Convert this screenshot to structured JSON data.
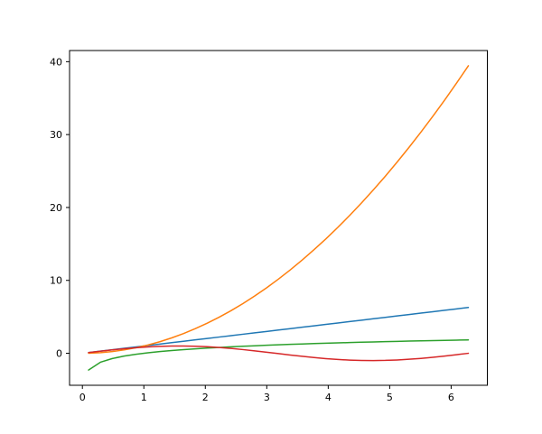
{
  "figure": {
    "background": "#ffffff",
    "title": ""
  },
  "chart_data": {
    "type": "line",
    "title": "",
    "xlabel": "",
    "ylabel": "",
    "grid": false,
    "legend": "none",
    "axis_color": "#000000",
    "xlim": [
      -0.209,
      6.589
    ],
    "ylim": [
      -4.39,
      41.53
    ],
    "xticks": [
      0,
      1,
      2,
      3,
      4,
      5,
      6
    ],
    "yticks": [
      0,
      10,
      20,
      30,
      40
    ],
    "x": [
      0.1,
      0.293,
      0.486,
      0.679,
      0.873,
      1.066,
      1.259,
      1.452,
      1.645,
      1.838,
      2.031,
      2.224,
      2.418,
      2.611,
      2.804,
      2.997,
      3.19,
      3.383,
      3.576,
      3.769,
      3.963,
      4.156,
      4.349,
      4.542,
      4.735,
      4.928,
      5.121,
      5.314,
      5.508,
      5.701,
      5.894,
      6.087,
      6.28
    ],
    "series": [
      {
        "name": "blue-line",
        "color": "#1f77b4",
        "values": [
          0.1,
          0.293,
          0.486,
          0.679,
          0.873,
          1.066,
          1.259,
          1.452,
          1.645,
          1.838,
          2.031,
          2.224,
          2.418,
          2.611,
          2.804,
          2.997,
          3.19,
          3.383,
          3.576,
          3.769,
          3.963,
          4.156,
          4.349,
          4.542,
          4.735,
          4.928,
          5.121,
          5.314,
          5.508,
          5.701,
          5.894,
          6.087,
          6.28
        ]
      },
      {
        "name": "orange-curve",
        "color": "#ff7f0e",
        "values": [
          0.01,
          0.086,
          0.236,
          0.461,
          0.761,
          1.136,
          1.585,
          2.108,
          2.706,
          3.379,
          4.126,
          4.948,
          5.844,
          6.815,
          7.861,
          8.981,
          10.176,
          11.445,
          12.79,
          14.208,
          15.701,
          17.269,
          18.912,
          20.629,
          22.42,
          24.286,
          26.227,
          28.243,
          30.333,
          32.497,
          34.736,
          37.05,
          39.438
        ]
      },
      {
        "name": "green-curve",
        "color": "#2ca02c",
        "values": [
          -2.303,
          -1.228,
          -0.722,
          -0.387,
          -0.136,
          0.064,
          0.23,
          0.373,
          0.498,
          0.609,
          0.709,
          0.799,
          0.883,
          0.96,
          1.031,
          1.098,
          1.16,
          1.219,
          1.274,
          1.327,
          1.377,
          1.425,
          1.47,
          1.513,
          1.555,
          1.595,
          1.633,
          1.67,
          1.706,
          1.741,
          1.774,
          1.806,
          1.837
        ]
      },
      {
        "name": "red-curve",
        "color": "#d62728",
        "values": [
          0.1,
          0.289,
          0.467,
          0.628,
          0.766,
          0.875,
          0.951,
          0.993,
          0.997,
          0.964,
          0.896,
          0.794,
          0.662,
          0.506,
          0.331,
          0.144,
          -0.048,
          -0.239,
          -0.421,
          -0.588,
          -0.732,
          -0.85,
          -0.934,
          -0.985,
          -1.0,
          -0.977,
          -0.918,
          -0.823,
          -0.7,
          -0.549,
          -0.38,
          -0.195,
          -0.003
        ]
      }
    ]
  }
}
